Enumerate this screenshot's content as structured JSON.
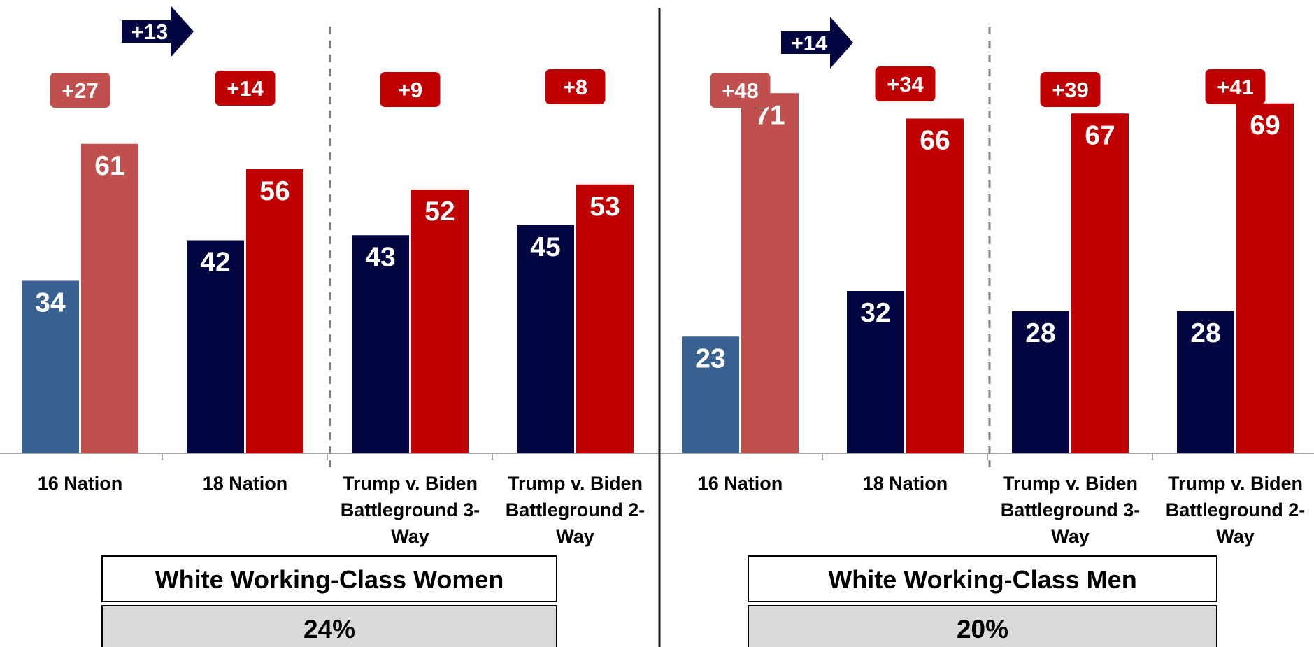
{
  "chart_data": [
    {
      "type": "bar",
      "title": "White Working-Class Women",
      "share": "24%",
      "categories": [
        "16 Nation",
        "18 Nation",
        "Trump v. Biden Battleground 3-Way",
        "Trump v. Biden Battleground 2-Way"
      ],
      "category_lines": [
        [
          "16 Nation"
        ],
        [
          "18 Nation"
        ],
        [
          "Trump v. Biden",
          "Battleground 3-",
          "Way"
        ],
        [
          "Trump v. Biden",
          "Battleground 2-",
          "Way"
        ]
      ],
      "series": [
        {
          "values": [
            34,
            42,
            43,
            45
          ],
          "colors": [
            "#386192",
            "#020540",
            "#020540",
            "#020540"
          ]
        },
        {
          "values": [
            61,
            56,
            52,
            53
          ],
          "colors": [
            "#c0504d",
            "#c00000",
            "#c00000",
            "#c00000"
          ]
        }
      ],
      "margins": [
        "+27",
        "+14",
        "+9",
        "+8"
      ],
      "margin_colors": [
        "#c0504d",
        "#c00000",
        "#c00000",
        "#c00000"
      ],
      "shift": "+13",
      "ylim": [
        0,
        100
      ]
    },
    {
      "type": "bar",
      "title": "White Working-Class Men",
      "share": "20%",
      "categories": [
        "16 Nation",
        "18 Nation",
        "Trump v. Biden Battleground 3-Way",
        "Trump v. Biden Battleground 2-Way"
      ],
      "category_lines": [
        [
          "16 Nation"
        ],
        [
          "18 Nation"
        ],
        [
          "Trump v. Biden",
          "Battleground 3-",
          "Way"
        ],
        [
          "Trump v. Biden",
          "Battleground 2-",
          "Way"
        ]
      ],
      "series": [
        {
          "values": [
            23,
            32,
            28,
            28
          ],
          "colors": [
            "#386192",
            "#020540",
            "#020540",
            "#020540"
          ]
        },
        {
          "values": [
            71,
            66,
            67,
            69
          ],
          "colors": [
            "#c0504d",
            "#c00000",
            "#c00000",
            "#c00000"
          ]
        }
      ],
      "margins": [
        "+48",
        "+34",
        "+39",
        "+41"
      ],
      "margin_colors": [
        "#c0504d",
        "#c00000",
        "#c00000",
        "#c00000"
      ],
      "shift": "+14",
      "ylim": [
        0,
        100
      ]
    }
  ],
  "colors": {
    "arrow": "#020540",
    "share_box": "#d9d9d9",
    "axis": "#a6a6a6",
    "divider": "#1a1a1a",
    "dashed": "#7f7f7f"
  }
}
